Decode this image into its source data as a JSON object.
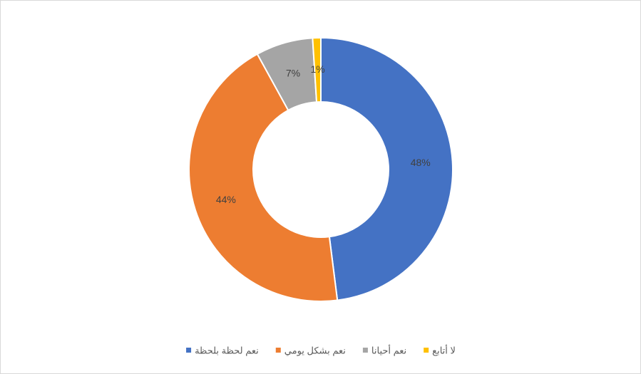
{
  "chart_data": {
    "type": "donut",
    "categories": [
      "نعم لحظة بلحظة",
      "نعم بشكل يومي",
      "نعم أحيانا",
      "لا أتابع"
    ],
    "values": [
      48,
      44,
      7,
      1
    ],
    "value_labels": [
      "48%",
      "44%",
      "7%",
      "1%"
    ],
    "colors": [
      "#4472c4",
      "#ed7d31",
      "#a5a5a5",
      "#ffc000"
    ],
    "legend": "bottom"
  }
}
